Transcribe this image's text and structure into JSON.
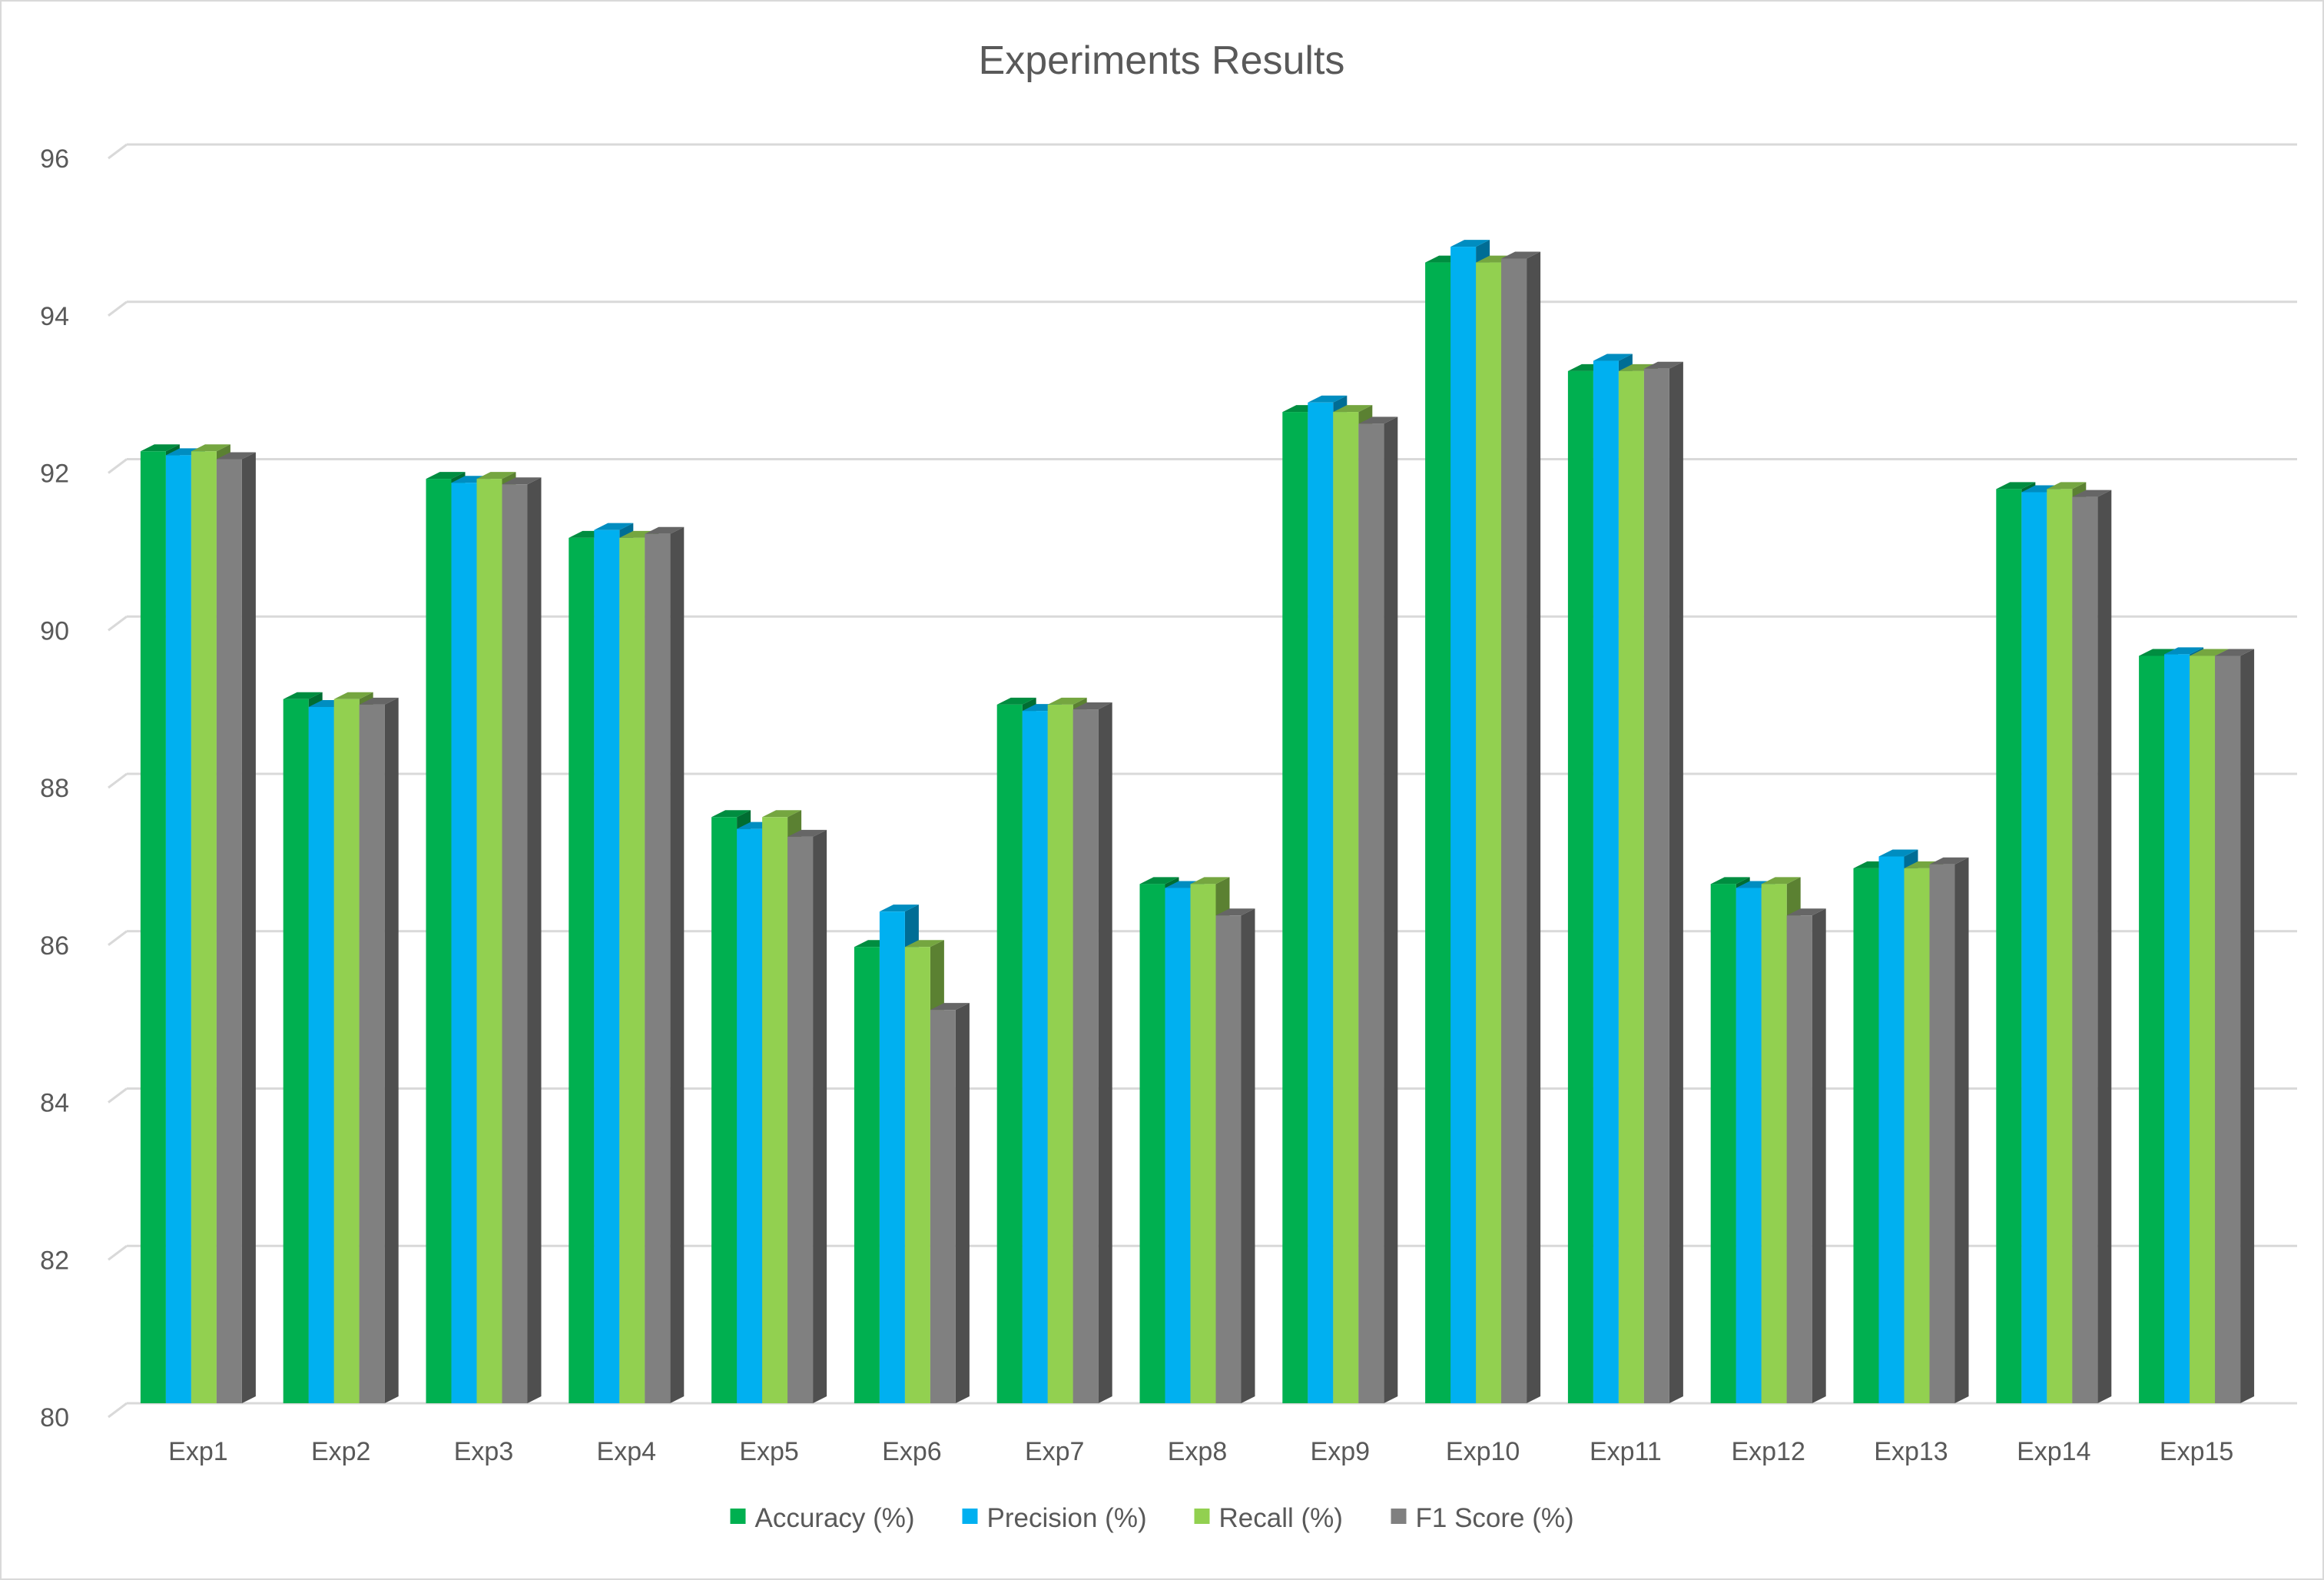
{
  "chart_data": {
    "type": "bar",
    "title": "Experiments Results",
    "xlabel": "",
    "ylabel": "",
    "ylim": [
      80,
      96
    ],
    "y_ticks": [
      80,
      82,
      84,
      86,
      88,
      90,
      92,
      94,
      96
    ],
    "grid": true,
    "legend_position": "bottom",
    "categories": [
      "Exp1",
      "Exp2",
      "Exp3",
      "Exp4",
      "Exp5",
      "Exp6",
      "Exp7",
      "Exp8",
      "Exp9",
      "Exp10",
      "Exp11",
      "Exp12",
      "Exp13",
      "Exp14",
      "Exp15"
    ],
    "series": [
      {
        "name": "Accuracy (%)",
        "color": "#00b050",
        "values": [
          92.1,
          88.95,
          91.75,
          91.0,
          87.45,
          85.8,
          88.88,
          86.6,
          92.6,
          94.5,
          93.12,
          86.6,
          86.8,
          91.62,
          89.5
        ]
      },
      {
        "name": "Precision (%)",
        "color": "#00b0f0",
        "values": [
          92.05,
          88.85,
          91.7,
          91.1,
          87.3,
          86.25,
          88.8,
          86.55,
          92.72,
          94.7,
          93.25,
          86.55,
          86.95,
          91.58,
          89.52
        ]
      },
      {
        "name": "Recall (%)",
        "color": "#92d050",
        "values": [
          92.1,
          88.95,
          91.75,
          91.0,
          87.45,
          85.8,
          88.88,
          86.6,
          92.6,
          94.5,
          93.12,
          86.6,
          86.8,
          91.62,
          89.5
        ]
      },
      {
        "name": "F1 Score (%)",
        "color": "#808080",
        "values": [
          92.0,
          88.88,
          91.68,
          91.05,
          87.2,
          85.0,
          88.82,
          86.2,
          92.45,
          94.55,
          93.15,
          86.2,
          86.85,
          91.52,
          89.5
        ]
      }
    ]
  }
}
